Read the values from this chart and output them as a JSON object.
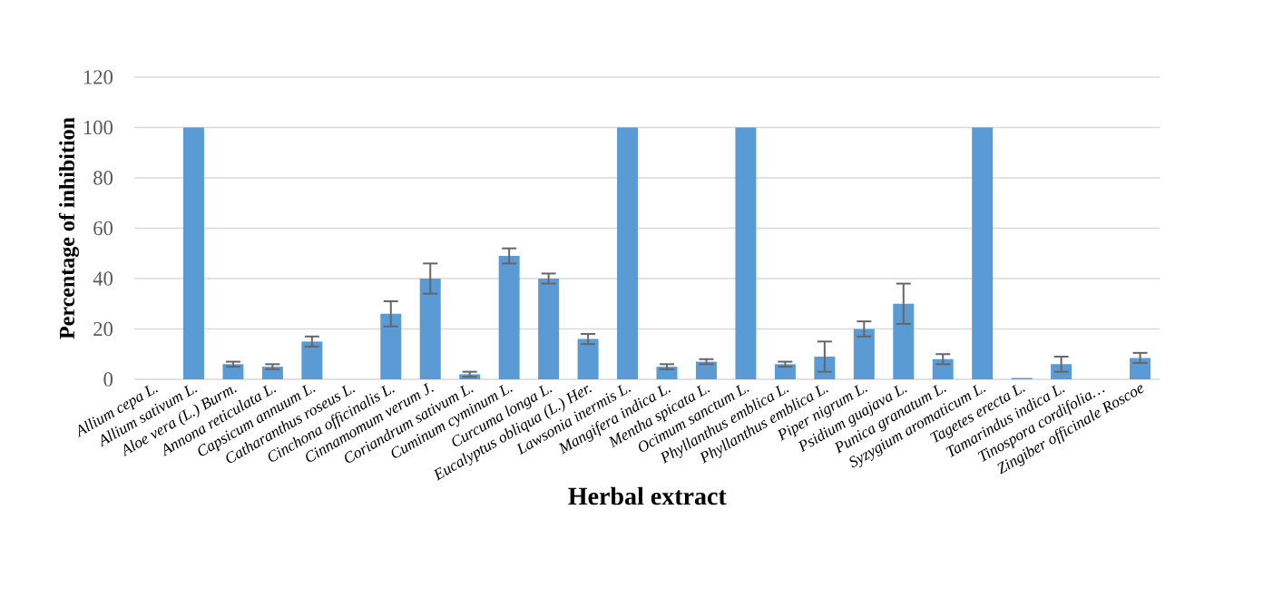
{
  "chart_data": {
    "type": "bar",
    "xlabel": "Herbal extract",
    "ylabel": "Percentage of inhibition",
    "categories": [
      "Allium cepa L.",
      "Allium sativum L.",
      "Aloe vera (L.) Burm.",
      "Annona reticulata L.",
      "Capsicum annuum L.",
      "Catharanthus roseus L.",
      "Cinchona officinalis L.",
      "Cinnamomum verum J.",
      "Coriandrum sativum L.",
      "Cuminum cyminum L.",
      "Curcuma longa L.",
      "Eucalyptus obliqua (L.) Her.",
      "Lawsonia inermis L.",
      "Mangifera indica L.",
      "Mentha spicata L.",
      "Ocimum sanctum L.",
      "Phyllanthus emblica L.",
      "Phyllanthus emblica L.",
      "Piper nigrum L.",
      "Psidium guajava L.",
      "Punica granatum L.",
      "Syzygium aromaticum L.",
      "Tagetes erecta L.",
      "Tamarindus indica L.",
      "Tinospora cordifolia…",
      "Zingiber officinale Roscoe"
    ],
    "values": [
      0,
      100,
      6,
      5,
      15,
      0,
      26,
      40,
      2,
      49,
      40,
      16,
      100,
      5,
      7,
      100,
      6,
      9,
      20,
      30,
      8,
      100,
      0.5,
      6,
      0,
      8.5
    ],
    "errors": [
      null,
      null,
      1,
      1,
      2,
      null,
      5,
      6,
      1,
      3,
      2,
      2,
      null,
      1,
      1,
      null,
      1,
      6,
      3,
      8,
      2,
      null,
      null,
      3,
      null,
      2
    ],
    "color": "#5b9bd5",
    "ylim": [
      0,
      120
    ],
    "yticks": [
      0,
      20,
      40,
      60,
      80,
      100,
      120
    ],
    "grid": "y"
  }
}
